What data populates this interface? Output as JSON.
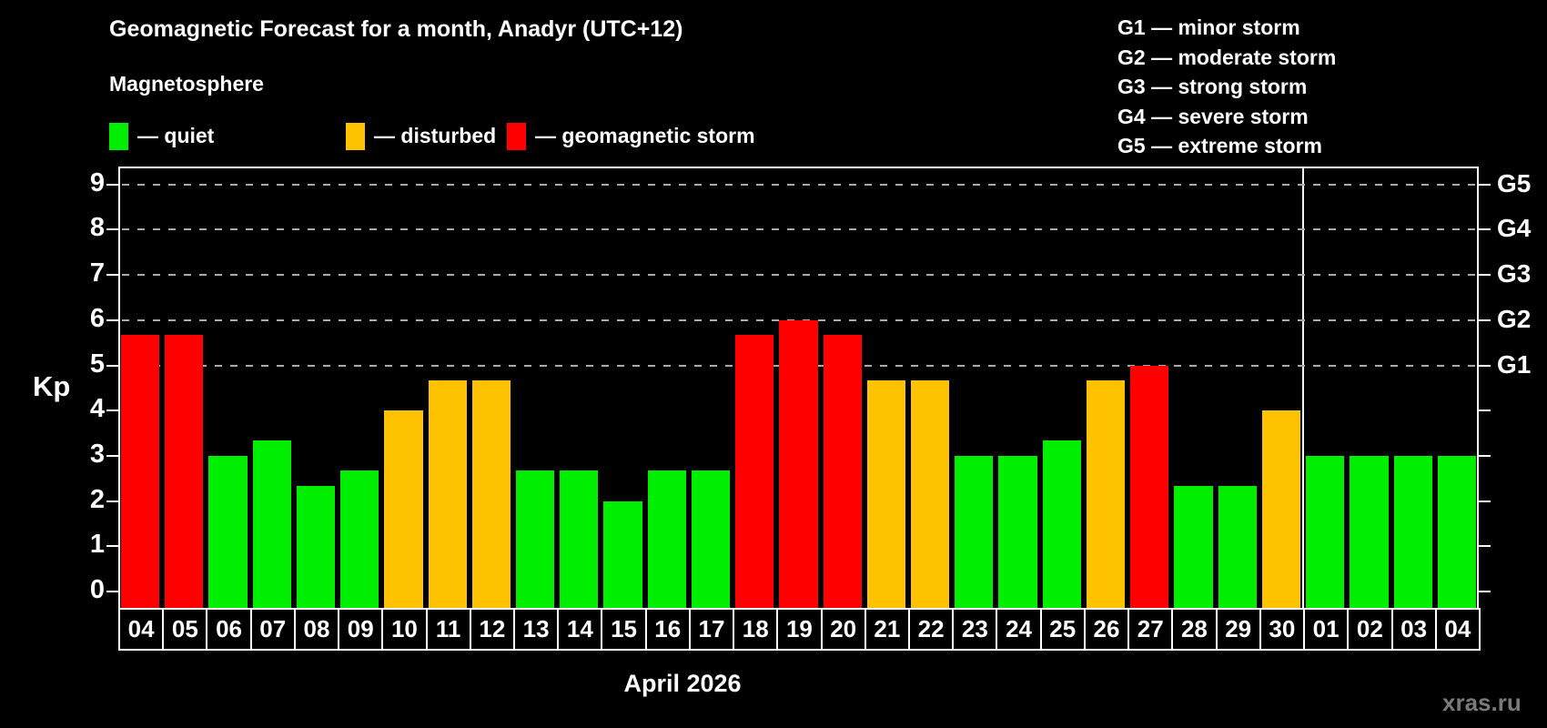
{
  "header": {
    "title": "Geomagnetic Forecast for a month, Anadyr (UTC+12)",
    "subtitle": "Magnetosphere"
  },
  "legend": {
    "items": [
      {
        "label": "— quiet",
        "status": "quiet",
        "color": "#00ee00"
      },
      {
        "label": "— disturbed",
        "status": "disturbed",
        "color": "#ffc200"
      },
      {
        "label": "— geomagnetic storm",
        "status": "storm",
        "color": "#ff0000"
      }
    ]
  },
  "g_scale_legend": {
    "lines": [
      "G1 — minor storm",
      "G2 — moderate storm",
      "G3 — strong storm",
      "G4 — severe storm",
      "G5 — extreme storm"
    ]
  },
  "axes": {
    "y_label": "Kp",
    "left_ticks": [
      0,
      1,
      2,
      3,
      4,
      5,
      6,
      7,
      8,
      9
    ],
    "right_labels": [
      {
        "value": 5,
        "label": "G1"
      },
      {
        "value": 6,
        "label": "G2"
      },
      {
        "value": 7,
        "label": "G3"
      },
      {
        "value": 8,
        "label": "G4"
      },
      {
        "value": 9,
        "label": "G5"
      }
    ],
    "x_label": "April 2026"
  },
  "watermark": "xras.ru",
  "chart_data": {
    "type": "bar",
    "title": "Geomagnetic Forecast for a month, Anadyr (UTC+12)",
    "subtitle": "Magnetosphere",
    "xlabel": "April 2026",
    "ylabel": "Kp",
    "ylim": [
      0,
      9.4
    ],
    "grid": "horizontal dashed lines at Kp 5-9 only",
    "gridlines_at": [
      5,
      6,
      7,
      8,
      9
    ],
    "legend_position": "top-left",
    "right_axis_labels": {
      "5": "G1",
      "6": "G2",
      "7": "G3",
      "8": "G4",
      "9": "G5"
    },
    "month_separator_after_index": 26,
    "months": {
      "april_indices": "0-26",
      "may_indices": "27-30"
    },
    "categories": [
      "04",
      "05",
      "06",
      "07",
      "08",
      "09",
      "10",
      "11",
      "12",
      "13",
      "14",
      "15",
      "16",
      "17",
      "18",
      "19",
      "20",
      "21",
      "22",
      "23",
      "24",
      "25",
      "26",
      "27",
      "28",
      "29",
      "30",
      "01",
      "02",
      "03",
      "04"
    ],
    "values": [
      5.67,
      5.67,
      3,
      3.33,
      2.33,
      2.67,
      4,
      4.67,
      4.67,
      2.67,
      2.67,
      2,
      2.67,
      2.67,
      5.67,
      6,
      5.67,
      4.67,
      4.67,
      3,
      3,
      3.33,
      4.67,
      5,
      2.33,
      2.33,
      4,
      3,
      3,
      3,
      3
    ],
    "statuses": [
      "storm",
      "storm",
      "quiet",
      "quiet",
      "quiet",
      "quiet",
      "disturbed",
      "disturbed",
      "disturbed",
      "quiet",
      "quiet",
      "quiet",
      "quiet",
      "quiet",
      "storm",
      "storm",
      "storm",
      "disturbed",
      "disturbed",
      "quiet",
      "quiet",
      "quiet",
      "disturbed",
      "storm",
      "quiet",
      "quiet",
      "disturbed",
      "quiet",
      "quiet",
      "quiet",
      "quiet"
    ],
    "status_colors": {
      "quiet": "#00ee00",
      "disturbed": "#ffc200",
      "storm": "#ff0000"
    }
  }
}
